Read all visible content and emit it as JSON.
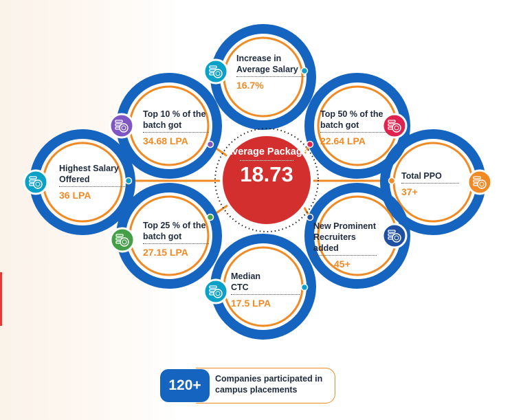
{
  "colors": {
    "blue": "#1565c0",
    "orange": "#f08a24",
    "red": "#d32f2f",
    "teal": "#0aa0c8",
    "purple": "#7e57c2",
    "crimson": "#e0224e",
    "green": "#43a047",
    "darkblue": "#1e4fa3",
    "text": "#1f2a3d"
  },
  "center": {
    "label": "Average Package",
    "value": "18.73"
  },
  "nodes": {
    "increase": {
      "label": "Increase in Average Salary",
      "value": "16.7%",
      "icon": "coins-stack-icon",
      "color": "teal"
    },
    "top10": {
      "label": "Top 10 % of the batch got",
      "value": "34.68 LPA",
      "icon": "coins-stack-icon",
      "color": "purple"
    },
    "top50": {
      "label": "Top 50 % of the batch got",
      "value": "22.64 LPA",
      "icon": "coins-stack-icon",
      "color": "crimson"
    },
    "highest": {
      "label": "Highest Salary Offered",
      "value": "36 LPA",
      "icon": "coins-stack-icon",
      "color": "teal"
    },
    "ppo": {
      "label": "Total PPO",
      "value": "37+",
      "icon": "coins-stack-icon",
      "color": "orange"
    },
    "top25": {
      "label": "Top 25 % of the batch got",
      "value": "27.15 LPA",
      "icon": "coins-stack-icon",
      "color": "green"
    },
    "recruiters": {
      "label": "New Prominent Recruiters added",
      "value": "45+",
      "icon": "coins-stack-icon",
      "color": "darkblue"
    },
    "median": {
      "label": "Median CTC",
      "value": "17.5 LPA",
      "icon": "coins-stack-icon",
      "color": "teal"
    }
  },
  "companies": {
    "count": "120+",
    "text": "Companies participated in campus placements"
  }
}
